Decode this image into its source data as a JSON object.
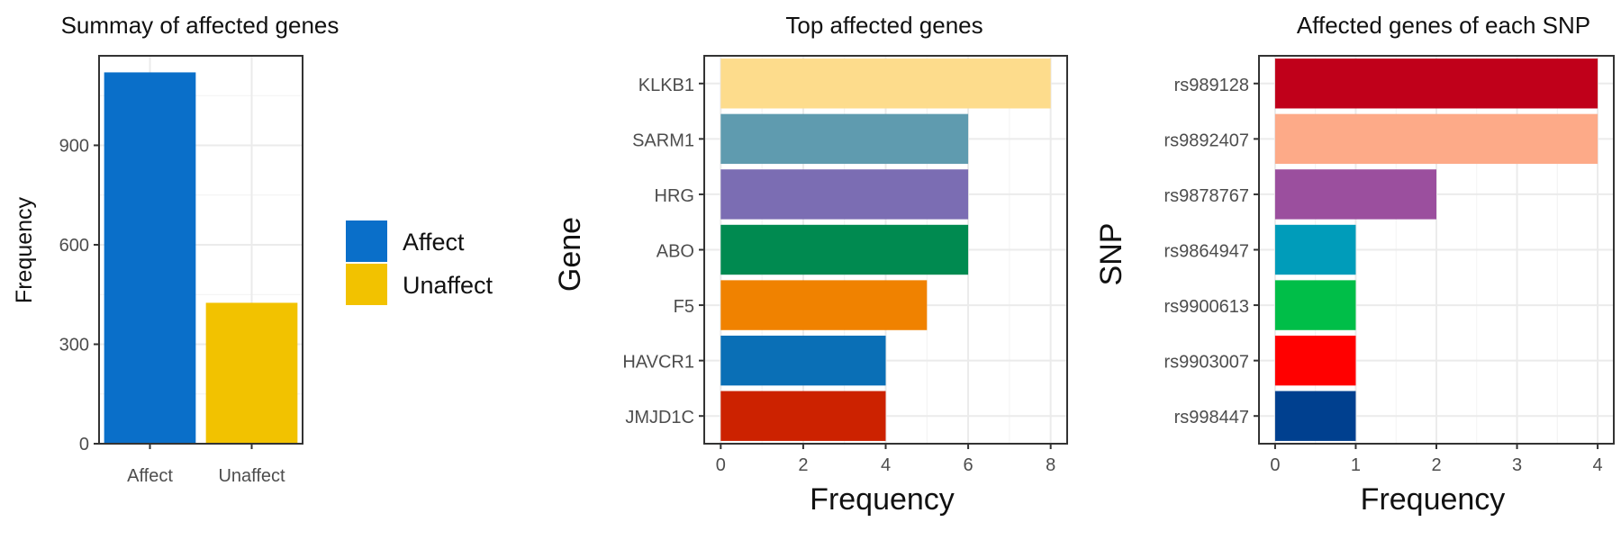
{
  "chart_data": [
    {
      "type": "bar",
      "orientation": "vertical",
      "title": "Summay of affected genes",
      "xlabel": "",
      "ylabel": "Frequency",
      "categories": [
        "Affect",
        "Unaffect"
      ],
      "values": [
        1120,
        425
      ],
      "colors": [
        "#0A6FC9",
        "#F2C200"
      ],
      "ylim": [
        0,
        1170
      ],
      "yticks": [
        0,
        300,
        600,
        900
      ],
      "grid": true,
      "legend": {
        "position": "right",
        "entries": [
          {
            "label": "Affect",
            "color": "#0A6FC9"
          },
          {
            "label": "Unaffect",
            "color": "#F2C200"
          }
        ]
      }
    },
    {
      "type": "bar",
      "orientation": "horizontal",
      "title": "Top affected genes",
      "xlabel": "Frequency",
      "ylabel": "Gene",
      "categories": [
        "KLKB1",
        "SARM1",
        "HRG",
        "ABO",
        "F5",
        "HAVCR1",
        "JMJD1C"
      ],
      "values": [
        8,
        6,
        6,
        6,
        5,
        4,
        4
      ],
      "colors": [
        "#FDDC8C",
        "#5F9BAF",
        "#7B6DB3",
        "#008A50",
        "#F08200",
        "#0A6FB6",
        "#CC2200"
      ],
      "xlim": [
        -0.4,
        8.4
      ],
      "xticks": [
        0,
        2,
        4,
        6,
        8
      ],
      "grid": true
    },
    {
      "type": "bar",
      "orientation": "horizontal",
      "title": "Affected genes of each SNP",
      "xlabel": "Frequency",
      "ylabel": "SNP",
      "categories": [
        "rs989128",
        "rs9892407",
        "rs9878767",
        "rs9864947",
        "rs9900613",
        "rs9903007",
        "rs998447"
      ],
      "values": [
        4,
        4,
        2,
        1,
        1,
        1,
        1
      ],
      "colors": [
        "#C0001A",
        "#FDAA88",
        "#9B4F9E",
        "#009CBA",
        "#00BE48",
        "#FF0000",
        "#00408F"
      ],
      "xlim": [
        -0.2,
        4.2
      ],
      "xticks": [
        0,
        1,
        2,
        3,
        4
      ],
      "grid": true
    }
  ]
}
